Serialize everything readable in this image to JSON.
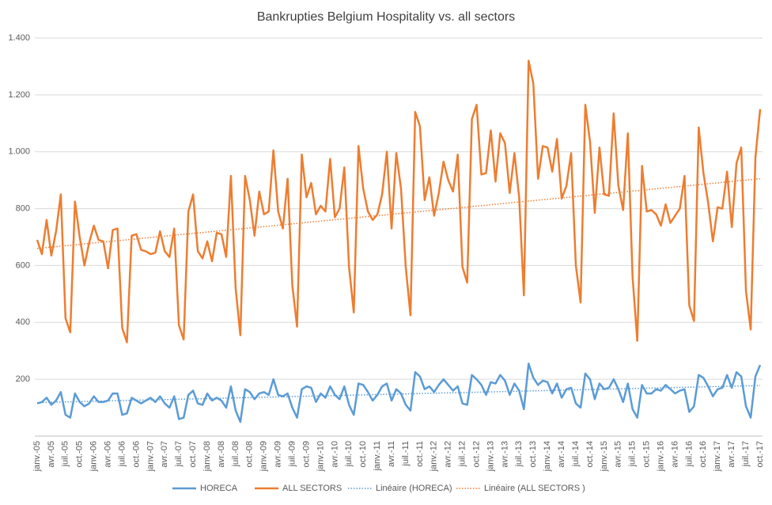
{
  "chart_data": {
    "type": "line",
    "title": "Bankrupties Belgium Hospitality vs. all sectors",
    "categories": [
      "janv.-05",
      null,
      null,
      "avr.-05",
      null,
      null,
      "juil.-05",
      null,
      null,
      "oct.-05",
      null,
      null,
      "janv.-06",
      null,
      null,
      "avr.-06",
      null,
      null,
      "juil.-06",
      null,
      null,
      "oct.-06",
      null,
      null,
      "janv.-07",
      null,
      null,
      "avr.-07",
      null,
      null,
      "juil.-07",
      null,
      null,
      "oct.-07",
      null,
      null,
      "janv.-08",
      null,
      null,
      "avr.-08",
      null,
      null,
      "juil.-08",
      null,
      null,
      "oct.-08",
      null,
      null,
      "janv.-09",
      null,
      null,
      "avr.-09",
      null,
      null,
      "juil.-09",
      null,
      null,
      "oct.-09",
      null,
      null,
      "janv.-10",
      null,
      null,
      "avr.-10",
      null,
      null,
      "juil.-10",
      null,
      null,
      "oct.-10",
      null,
      null,
      "janv.-11",
      null,
      null,
      "avr.-11",
      null,
      null,
      "juil.-11",
      null,
      null,
      "oct.-11",
      null,
      null,
      "janv.-12",
      null,
      null,
      "avr.-12",
      null,
      null,
      "juil.-12",
      null,
      null,
      "oct.-12",
      null,
      null,
      "janv.-13",
      null,
      null,
      "avr.-13",
      null,
      null,
      "juil.-13",
      null,
      null,
      "oct.-13",
      null,
      null,
      "janv.-14",
      null,
      null,
      "avr.-14",
      null,
      null,
      "juil.-14",
      null,
      null,
      "oct.-14",
      null,
      null,
      "janv.-15",
      null,
      null,
      "avr.-15",
      null,
      null,
      "juil.-15",
      null,
      null,
      "oct.-15",
      null,
      null,
      "janv.-16",
      null,
      null,
      "avr.-16",
      null,
      null,
      "juil.-16",
      null,
      null,
      "oct.-16",
      null,
      null,
      "janv.-17",
      null,
      null,
      "avr.-17",
      null,
      null,
      "juil.-17",
      null,
      null,
      "oct.-17"
    ],
    "series": [
      {
        "name": "HORECA",
        "color": "#5b9bd5",
        "values": [
          115,
          120,
          135,
          110,
          125,
          155,
          75,
          65,
          150,
          120,
          105,
          115,
          140,
          120,
          120,
          125,
          150,
          150,
          75,
          80,
          135,
          125,
          115,
          125,
          135,
          120,
          140,
          115,
          100,
          140,
          60,
          65,
          145,
          160,
          115,
          110,
          150,
          125,
          135,
          125,
          100,
          175,
          90,
          50,
          165,
          155,
          130,
          150,
          155,
          145,
          200,
          145,
          140,
          150,
          100,
          65,
          165,
          175,
          170,
          120,
          150,
          135,
          175,
          145,
          130,
          175,
          110,
          75,
          185,
          180,
          155,
          125,
          145,
          175,
          185,
          125,
          165,
          150,
          110,
          90,
          225,
          210,
          165,
          175,
          155,
          180,
          200,
          180,
          160,
          175,
          115,
          110,
          215,
          200,
          180,
          145,
          190,
          185,
          215,
          195,
          145,
          185,
          160,
          95,
          255,
          205,
          180,
          195,
          190,
          150,
          185,
          135,
          165,
          170,
          115,
          100,
          220,
          200,
          130,
          185,
          165,
          170,
          200,
          165,
          120,
          185,
          95,
          65,
          180,
          150,
          150,
          165,
          160,
          180,
          165,
          150,
          160,
          165,
          85,
          105,
          215,
          205,
          175,
          140,
          165,
          170,
          215,
          170,
          225,
          210,
          105,
          65,
          210,
          250
        ],
        "trend": {
          "name": "Linéaire (HORECA)",
          "values": [
            118,
            178
          ]
        }
      },
      {
        "name": "ALL SECTORS",
        "color": "#ed7d31",
        "values": [
          690,
          640,
          760,
          635,
          720,
          850,
          415,
          365,
          825,
          700,
          600,
          680,
          740,
          690,
          685,
          590,
          725,
          730,
          380,
          330,
          705,
          710,
          655,
          650,
          640,
          645,
          720,
          650,
          630,
          730,
          390,
          340,
          790,
          850,
          650,
          625,
          685,
          615,
          715,
          710,
          630,
          915,
          520,
          355,
          915,
          830,
          705,
          860,
          780,
          790,
          1005,
          790,
          730,
          905,
          530,
          385,
          990,
          840,
          890,
          780,
          810,
          790,
          975,
          770,
          800,
          945,
          595,
          435,
          1020,
          870,
          790,
          760,
          780,
          850,
          1000,
          730,
          995,
          870,
          595,
          425,
          1140,
          1090,
          830,
          910,
          775,
          855,
          965,
          900,
          860,
          990,
          595,
          540,
          1115,
          1165,
          920,
          925,
          1075,
          895,
          1065,
          1030,
          855,
          995,
          840,
          495,
          1320,
          1240,
          905,
          1020,
          1015,
          930,
          1045,
          835,
          880,
          995,
          600,
          470,
          1165,
          1035,
          785,
          1015,
          850,
          845,
          1135,
          880,
          795,
          1065,
          560,
          335,
          950,
          790,
          795,
          780,
          740,
          815,
          750,
          775,
          800,
          915,
          460,
          405,
          1085,
          925,
          820,
          685,
          805,
          800,
          930,
          735,
          960,
          1015,
          510,
          375,
          980,
          1150
        ],
        "trend": {
          "name": "Linéaire (ALL SECTORS )",
          "values": [
            660,
            905
          ]
        }
      }
    ],
    "ylim": [
      0,
      1400
    ],
    "yticks": [
      200,
      400,
      600,
      800,
      {
        "value": 1000,
        "label": "1.000"
      },
      {
        "value": 1200,
        "label": "1.200"
      },
      {
        "value": 1400,
        "label": "1.400"
      }
    ],
    "grid": true
  }
}
